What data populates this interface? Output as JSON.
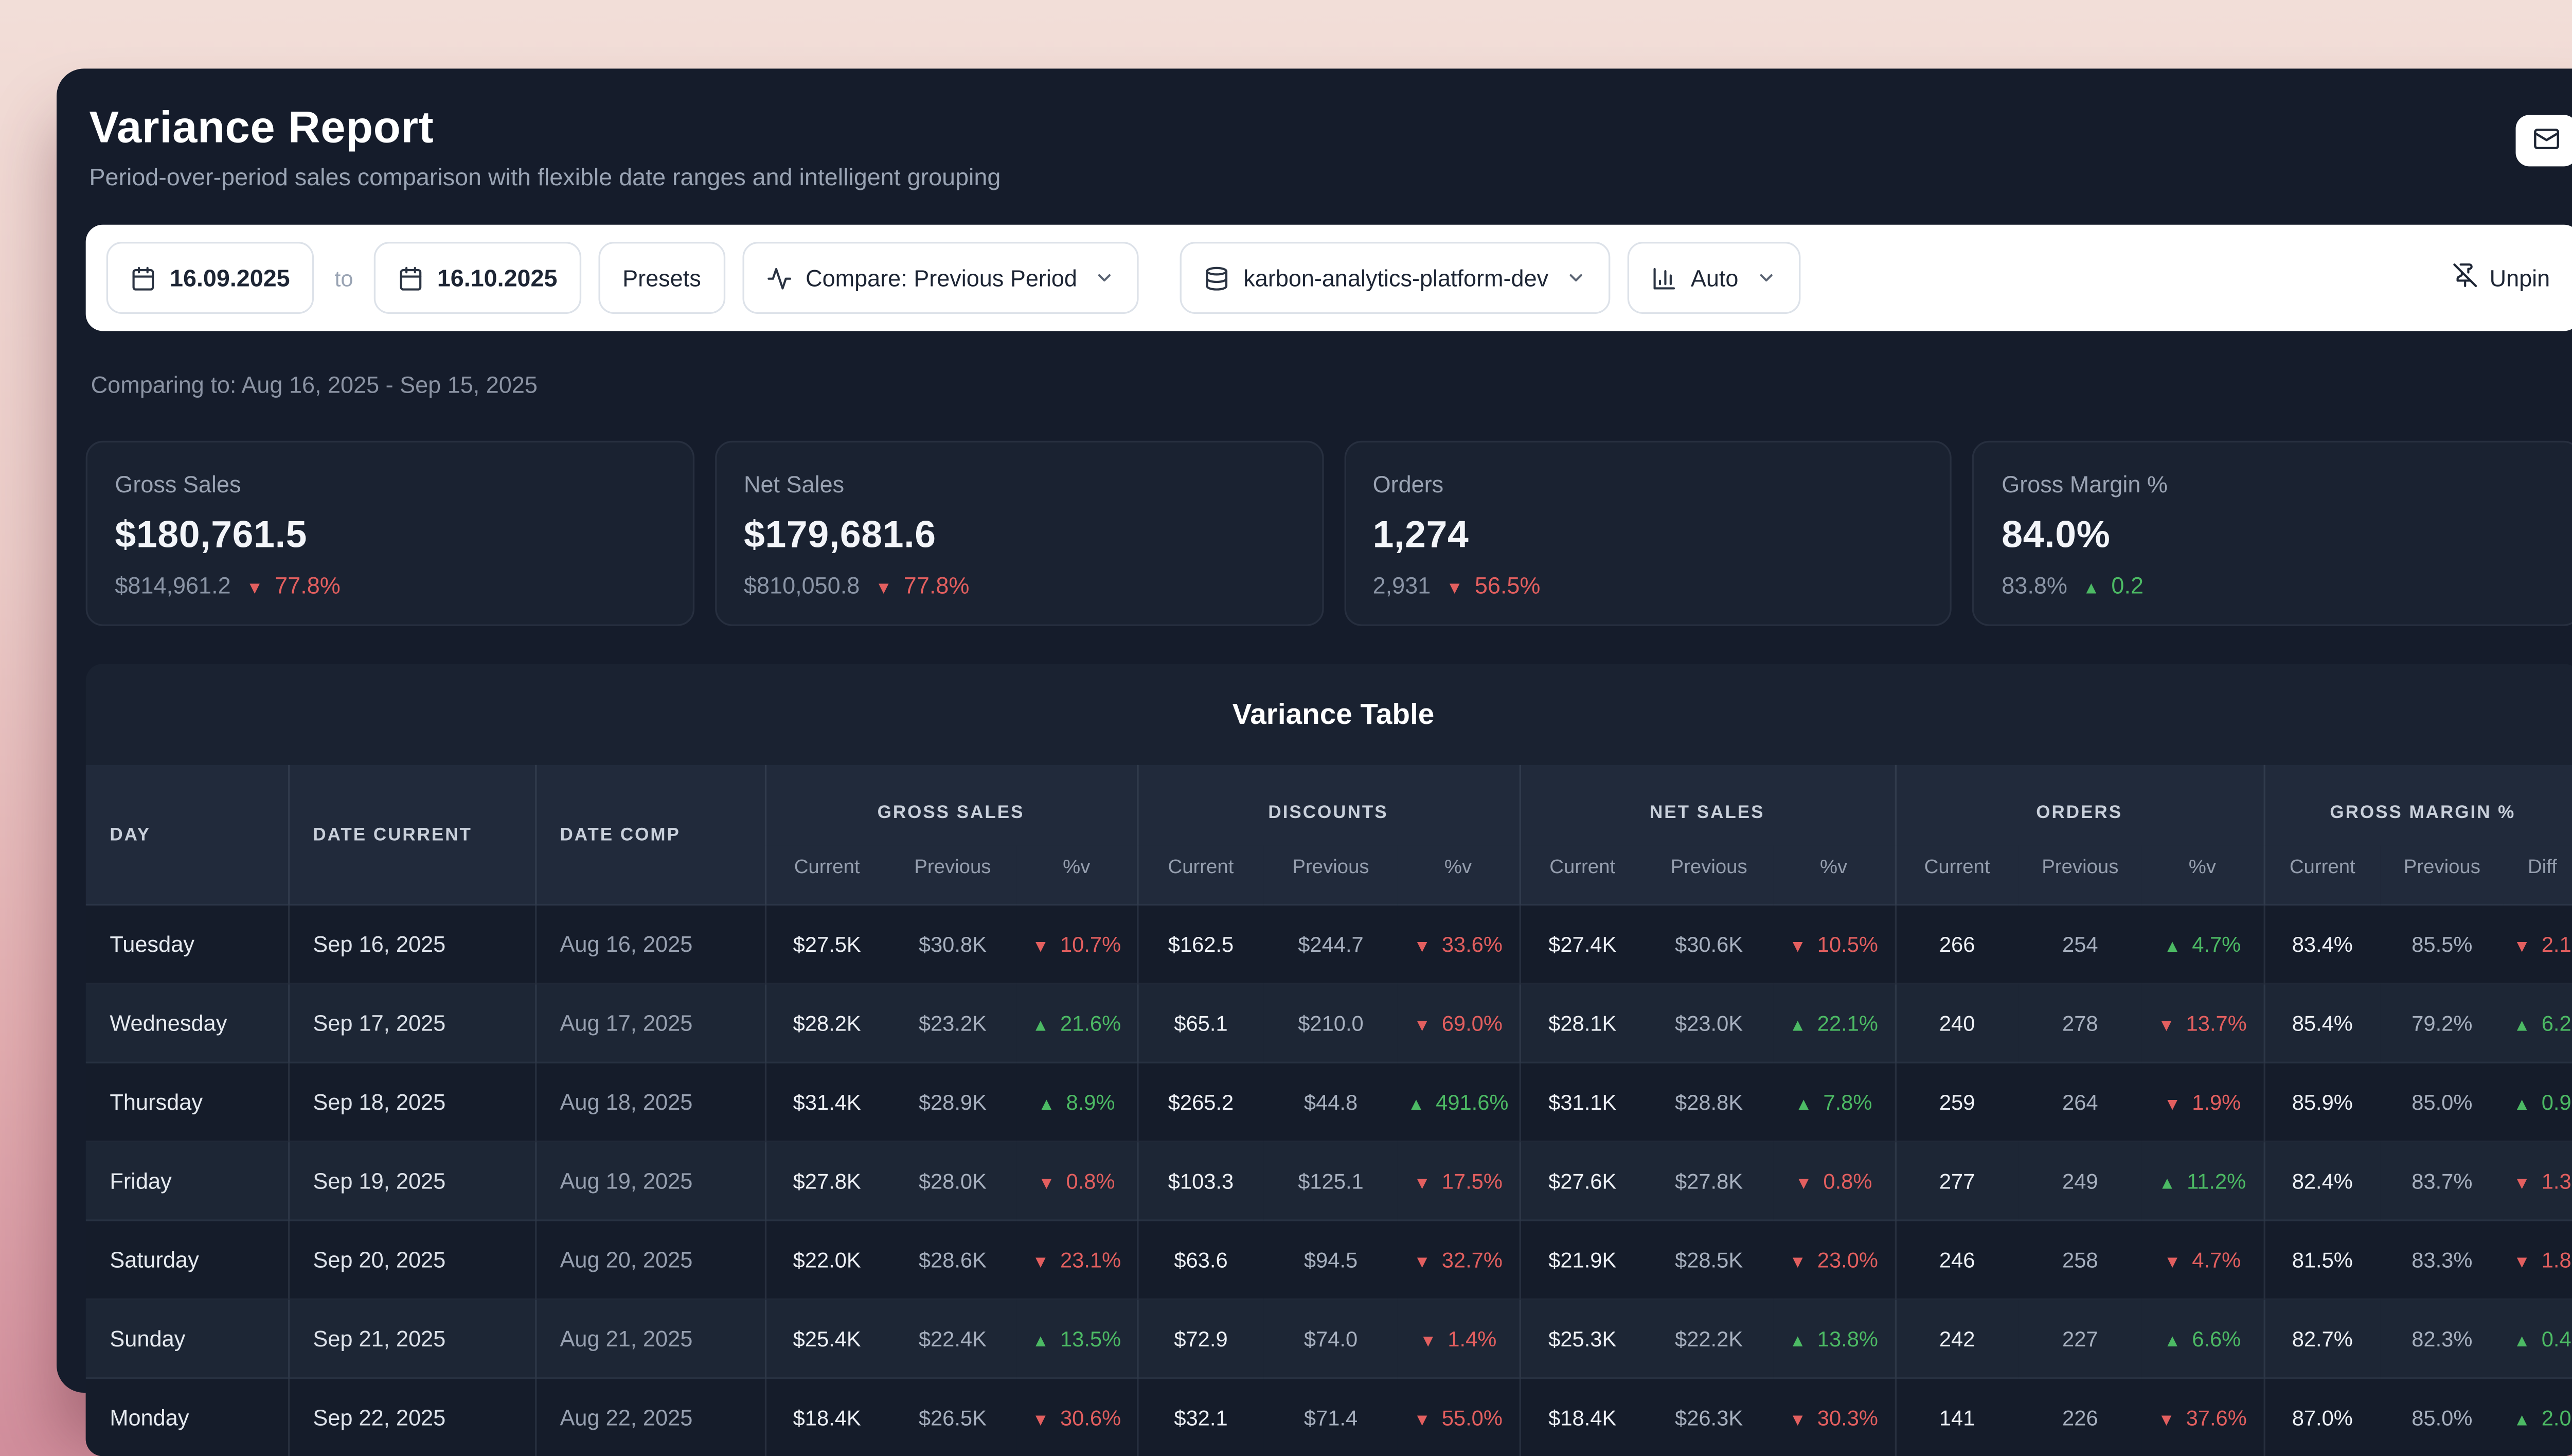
{
  "header": {
    "title": "Variance Report",
    "subtitle": "Period-over-period sales comparison with flexible date ranges and intelligent grouping"
  },
  "toolbar": {
    "date_from": "16.09.2025",
    "to_label": "to",
    "date_to": "16.10.2025",
    "presets_label": "Presets",
    "compare_label": "Compare: Previous Period",
    "dataset_label": "karbon-analytics-platform-dev",
    "grouping_label": "Auto",
    "unpin_label": "Unpin"
  },
  "comparing_note": "Comparing to: Aug 16, 2025 - Sep 15, 2025",
  "colors": {
    "positive": "#4cba64",
    "negative": "#e35f5f"
  },
  "icons": {
    "triangle_up": "▲",
    "triangle_down": "▼",
    "names": [
      "mail-icon",
      "calendar-icon",
      "activity-icon",
      "chevron-down-icon",
      "database-icon",
      "bar-chart-icon",
      "pin-off-icon"
    ]
  },
  "kpis": [
    {
      "label": "Gross Sales",
      "value": "$180,761.5",
      "previous": "$814,961.2",
      "change": "77.8%",
      "direction": "down"
    },
    {
      "label": "Net Sales",
      "value": "$179,681.6",
      "previous": "$810,050.8",
      "change": "77.8%",
      "direction": "down"
    },
    {
      "label": "Orders",
      "value": "1,274",
      "previous": "2,931",
      "change": "56.5%",
      "direction": "down"
    },
    {
      "label": "Gross Margin %",
      "value": "84.0%",
      "previous": "83.8%",
      "change": "0.2",
      "direction": "up"
    }
  ],
  "table": {
    "title": "Variance Table",
    "columns": [
      "DAY",
      "DATE CURRENT",
      "DATE COMP"
    ],
    "groups": [
      {
        "label": "GROSS SALES",
        "sub": [
          "Current",
          "Previous",
          "%v"
        ]
      },
      {
        "label": "DISCOUNTS",
        "sub": [
          "Current",
          "Previous",
          "%v"
        ]
      },
      {
        "label": "NET SALES",
        "sub": [
          "Current",
          "Previous",
          "%v"
        ]
      },
      {
        "label": "ORDERS",
        "sub": [
          "Current",
          "Previous",
          "%v"
        ]
      },
      {
        "label": "GROSS MARGIN %",
        "sub": [
          "Current",
          "Previous",
          "Diff"
        ]
      }
    ],
    "rows": [
      {
        "day": "Tuesday",
        "date_current": "Sep 16, 2025",
        "date_comp": "Aug 16, 2025",
        "gross_sales": {
          "cur": "$27.5K",
          "prev": "$30.8K",
          "chg": "10.7%",
          "dir": "down"
        },
        "discounts": {
          "cur": "$162.5",
          "prev": "$244.7",
          "chg": "33.6%",
          "dir": "down"
        },
        "net_sales": {
          "cur": "$27.4K",
          "prev": "$30.6K",
          "chg": "10.5%",
          "dir": "down"
        },
        "orders": {
          "cur": "266",
          "prev": "254",
          "chg": "4.7%",
          "dir": "up"
        },
        "gross_margin": {
          "cur": "83.4%",
          "prev": "85.5%",
          "chg": "2.1",
          "dir": "down"
        }
      },
      {
        "day": "Wednesday",
        "date_current": "Sep 17, 2025",
        "date_comp": "Aug 17, 2025",
        "gross_sales": {
          "cur": "$28.2K",
          "prev": "$23.2K",
          "chg": "21.6%",
          "dir": "up"
        },
        "discounts": {
          "cur": "$65.1",
          "prev": "$210.0",
          "chg": "69.0%",
          "dir": "down"
        },
        "net_sales": {
          "cur": "$28.1K",
          "prev": "$23.0K",
          "chg": "22.1%",
          "dir": "up"
        },
        "orders": {
          "cur": "240",
          "prev": "278",
          "chg": "13.7%",
          "dir": "down"
        },
        "gross_margin": {
          "cur": "85.4%",
          "prev": "79.2%",
          "chg": "6.2",
          "dir": "up"
        }
      },
      {
        "day": "Thursday",
        "date_current": "Sep 18, 2025",
        "date_comp": "Aug 18, 2025",
        "gross_sales": {
          "cur": "$31.4K",
          "prev": "$28.9K",
          "chg": "8.9%",
          "dir": "up"
        },
        "discounts": {
          "cur": "$265.2",
          "prev": "$44.8",
          "chg": "491.6%",
          "dir": "up"
        },
        "net_sales": {
          "cur": "$31.1K",
          "prev": "$28.8K",
          "chg": "7.8%",
          "dir": "up"
        },
        "orders": {
          "cur": "259",
          "prev": "264",
          "chg": "1.9%",
          "dir": "down"
        },
        "gross_margin": {
          "cur": "85.9%",
          "prev": "85.0%",
          "chg": "0.9",
          "dir": "up"
        }
      },
      {
        "day": "Friday",
        "date_current": "Sep 19, 2025",
        "date_comp": "Aug 19, 2025",
        "gross_sales": {
          "cur": "$27.8K",
          "prev": "$28.0K",
          "chg": "0.8%",
          "dir": "down"
        },
        "discounts": {
          "cur": "$103.3",
          "prev": "$125.1",
          "chg": "17.5%",
          "dir": "down"
        },
        "net_sales": {
          "cur": "$27.6K",
          "prev": "$27.8K",
          "chg": "0.8%",
          "dir": "down"
        },
        "orders": {
          "cur": "277",
          "prev": "249",
          "chg": "11.2%",
          "dir": "up"
        },
        "gross_margin": {
          "cur": "82.4%",
          "prev": "83.7%",
          "chg": "1.3",
          "dir": "down"
        }
      },
      {
        "day": "Saturday",
        "date_current": "Sep 20, 2025",
        "date_comp": "Aug 20, 2025",
        "gross_sales": {
          "cur": "$22.0K",
          "prev": "$28.6K",
          "chg": "23.1%",
          "dir": "down"
        },
        "discounts": {
          "cur": "$63.6",
          "prev": "$94.5",
          "chg": "32.7%",
          "dir": "down"
        },
        "net_sales": {
          "cur": "$21.9K",
          "prev": "$28.5K",
          "chg": "23.0%",
          "dir": "down"
        },
        "orders": {
          "cur": "246",
          "prev": "258",
          "chg": "4.7%",
          "dir": "down"
        },
        "gross_margin": {
          "cur": "81.5%",
          "prev": "83.3%",
          "chg": "1.8",
          "dir": "down"
        }
      },
      {
        "day": "Sunday",
        "date_current": "Sep 21, 2025",
        "date_comp": "Aug 21, 2025",
        "gross_sales": {
          "cur": "$25.4K",
          "prev": "$22.4K",
          "chg": "13.5%",
          "dir": "up"
        },
        "discounts": {
          "cur": "$72.9",
          "prev": "$74.0",
          "chg": "1.4%",
          "dir": "down"
        },
        "net_sales": {
          "cur": "$25.3K",
          "prev": "$22.2K",
          "chg": "13.8%",
          "dir": "up"
        },
        "orders": {
          "cur": "242",
          "prev": "227",
          "chg": "6.6%",
          "dir": "up"
        },
        "gross_margin": {
          "cur": "82.7%",
          "prev": "82.3%",
          "chg": "0.4",
          "dir": "up"
        }
      },
      {
        "day": "Monday",
        "date_current": "Sep 22, 2025",
        "date_comp": "Aug 22, 2025",
        "gross_sales": {
          "cur": "$18.4K",
          "prev": "$26.5K",
          "chg": "30.6%",
          "dir": "down"
        },
        "discounts": {
          "cur": "$32.1",
          "prev": "$71.4",
          "chg": "55.0%",
          "dir": "down"
        },
        "net_sales": {
          "cur": "$18.4K",
          "prev": "$26.3K",
          "chg": "30.3%",
          "dir": "down"
        },
        "orders": {
          "cur": "141",
          "prev": "226",
          "chg": "37.6%",
          "dir": "down"
        },
        "gross_margin": {
          "cur": "87.0%",
          "prev": "85.0%",
          "chg": "2.0",
          "dir": "up"
        }
      }
    ]
  }
}
